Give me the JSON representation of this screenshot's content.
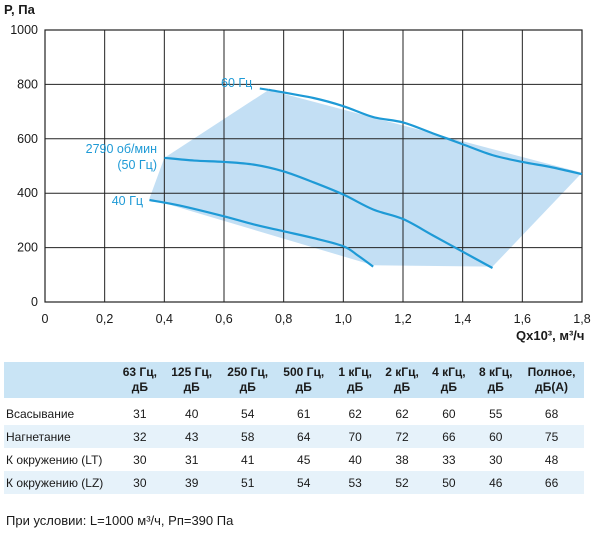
{
  "chart_data": {
    "type": "line",
    "ylabel": "P, Па",
    "xlabel": "Qx10³, м³/ч",
    "xlim": [
      0,
      1.8
    ],
    "ylim": [
      0,
      1000
    ],
    "x_ticks": [
      "0",
      "0,2",
      "0,4",
      "0,6",
      "0,8",
      "1,0",
      "1,2",
      "1,4",
      "1,6",
      "1,8"
    ],
    "y_ticks": [
      "0",
      "200",
      "400",
      "600",
      "800",
      "1000"
    ],
    "grid": true,
    "operating_area_color": "#bcdcf3",
    "curve_color": "#1e9ad6",
    "operating_area": [
      [
        0.35,
        380
      ],
      [
        0.4,
        530
      ],
      [
        0.75,
        780
      ],
      [
        1.8,
        475
      ],
      [
        1.5,
        130
      ],
      [
        1.1,
        135
      ],
      [
        0.38,
        370
      ]
    ],
    "series": [
      {
        "name": "60 Гц",
        "label": "60 Гц",
        "x": [
          0.75,
          0.9,
          1.0,
          1.1,
          1.2,
          1.3,
          1.4,
          1.5,
          1.6,
          1.7,
          1.8
        ],
        "y": [
          780,
          750,
          720,
          680,
          660,
          620,
          580,
          540,
          515,
          495,
          470
        ]
      },
      {
        "name": "2790 об/мин (50 Гц)",
        "label_line1": "2790 об/мин",
        "label_line2": "(50 Гц)",
        "x": [
          0.4,
          0.5,
          0.6,
          0.7,
          0.8,
          0.9,
          1.0,
          1.1,
          1.2,
          1.3,
          1.4,
          1.5
        ],
        "y": [
          530,
          520,
          515,
          505,
          480,
          440,
          395,
          340,
          305,
          245,
          185,
          125
        ]
      },
      {
        "name": "40 Гц",
        "label": "40 Гц",
        "x": [
          0.35,
          0.45,
          0.6,
          0.7,
          0.8,
          0.9,
          1.0,
          1.05,
          1.1
        ],
        "y": [
          375,
          355,
          315,
          285,
          260,
          235,
          205,
          170,
          130
        ]
      }
    ]
  },
  "table": {
    "headers": [
      [
        "63 Гц,",
        "дБ"
      ],
      [
        "125 Гц,",
        "дБ"
      ],
      [
        "250 Гц,",
        "дБ"
      ],
      [
        "500 Гц,",
        "дБ"
      ],
      [
        "1 кГц,",
        "дБ"
      ],
      [
        "2 кГц,",
        "дБ"
      ],
      [
        "4 кГц,",
        "дБ"
      ],
      [
        "8 кГц,",
        "дБ"
      ],
      [
        "Полное,",
        "дБ(А)"
      ]
    ],
    "rows": [
      {
        "label": "Всасывание",
        "values": [
          "31",
          "40",
          "54",
          "61",
          "62",
          "62",
          "60",
          "55",
          "68"
        ]
      },
      {
        "label": "Нагнетание",
        "values": [
          "32",
          "43",
          "58",
          "64",
          "70",
          "72",
          "66",
          "60",
          "75"
        ]
      },
      {
        "label": "К окружению (LT)",
        "values": [
          "30",
          "31",
          "41",
          "45",
          "40",
          "38",
          "33",
          "30",
          "48"
        ]
      },
      {
        "label": "К окружению (LZ)",
        "values": [
          "30",
          "39",
          "51",
          "54",
          "53",
          "52",
          "50",
          "46",
          "66"
        ]
      }
    ]
  },
  "footer": {
    "condition": "При условии: L=1000 м³/ч, Pп=390 Па"
  }
}
